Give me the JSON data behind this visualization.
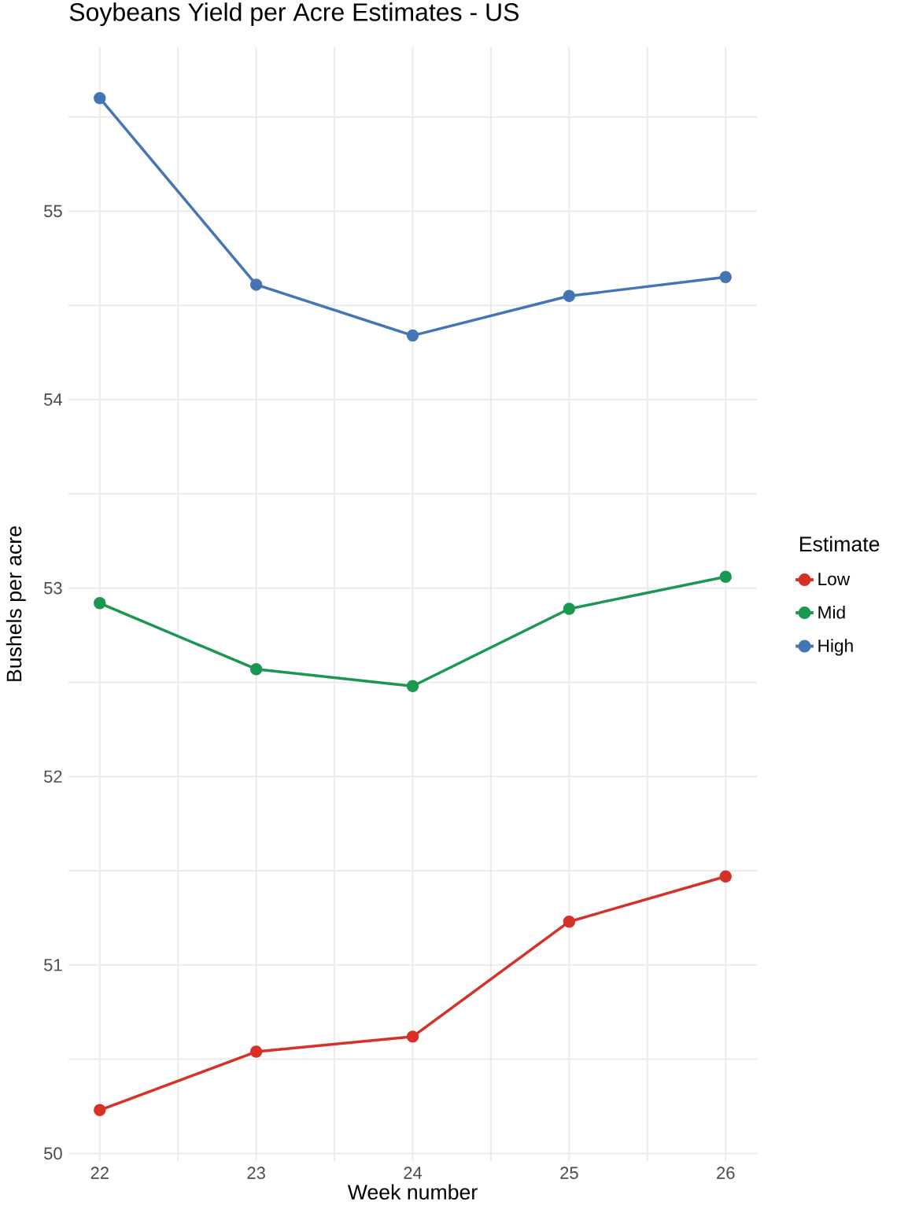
{
  "chart_data": {
    "type": "line",
    "title": "Soybeans Yield per Acre Estimates - US",
    "xlabel": "Week number",
    "ylabel": "Bushels per acre",
    "legend_title": "Estimate",
    "x": [
      22,
      23,
      24,
      25,
      26
    ],
    "series": [
      {
        "name": "Low",
        "color": "#d73027",
        "values": [
          50.23,
          50.54,
          50.62,
          51.23,
          51.47
        ]
      },
      {
        "name": "Mid",
        "color": "#1a9850",
        "values": [
          52.92,
          52.57,
          52.48,
          52.89,
          53.06
        ]
      },
      {
        "name": "High",
        "color": "#4575b4",
        "values": [
          55.6,
          54.61,
          54.34,
          54.55,
          54.65
        ]
      }
    ],
    "xlim": [
      21.8,
      26.2
    ],
    "ylim": [
      49.96,
      55.87
    ],
    "xticks": [
      22,
      {
        "value": 22.5,
        "label": null
      },
      23,
      {
        "value": 23.5,
        "label": null
      },
      24,
      {
        "value": 24.5,
        "label": null
      },
      25,
      {
        "value": 25.5,
        "label": null
      },
      26
    ],
    "yticks": [
      50,
      {
        "value": 50.5,
        "label": null
      },
      51,
      {
        "value": 51.5,
        "label": null
      },
      52,
      {
        "value": 52.5,
        "label": null
      },
      53,
      {
        "value": 53.5,
        "label": null
      },
      54,
      {
        "value": 54.5,
        "label": null
      },
      55,
      {
        "value": 55.5,
        "label": null
      }
    ],
    "grid": true,
    "legend": "right",
    "marker": "circle",
    "line_style": "solid"
  }
}
